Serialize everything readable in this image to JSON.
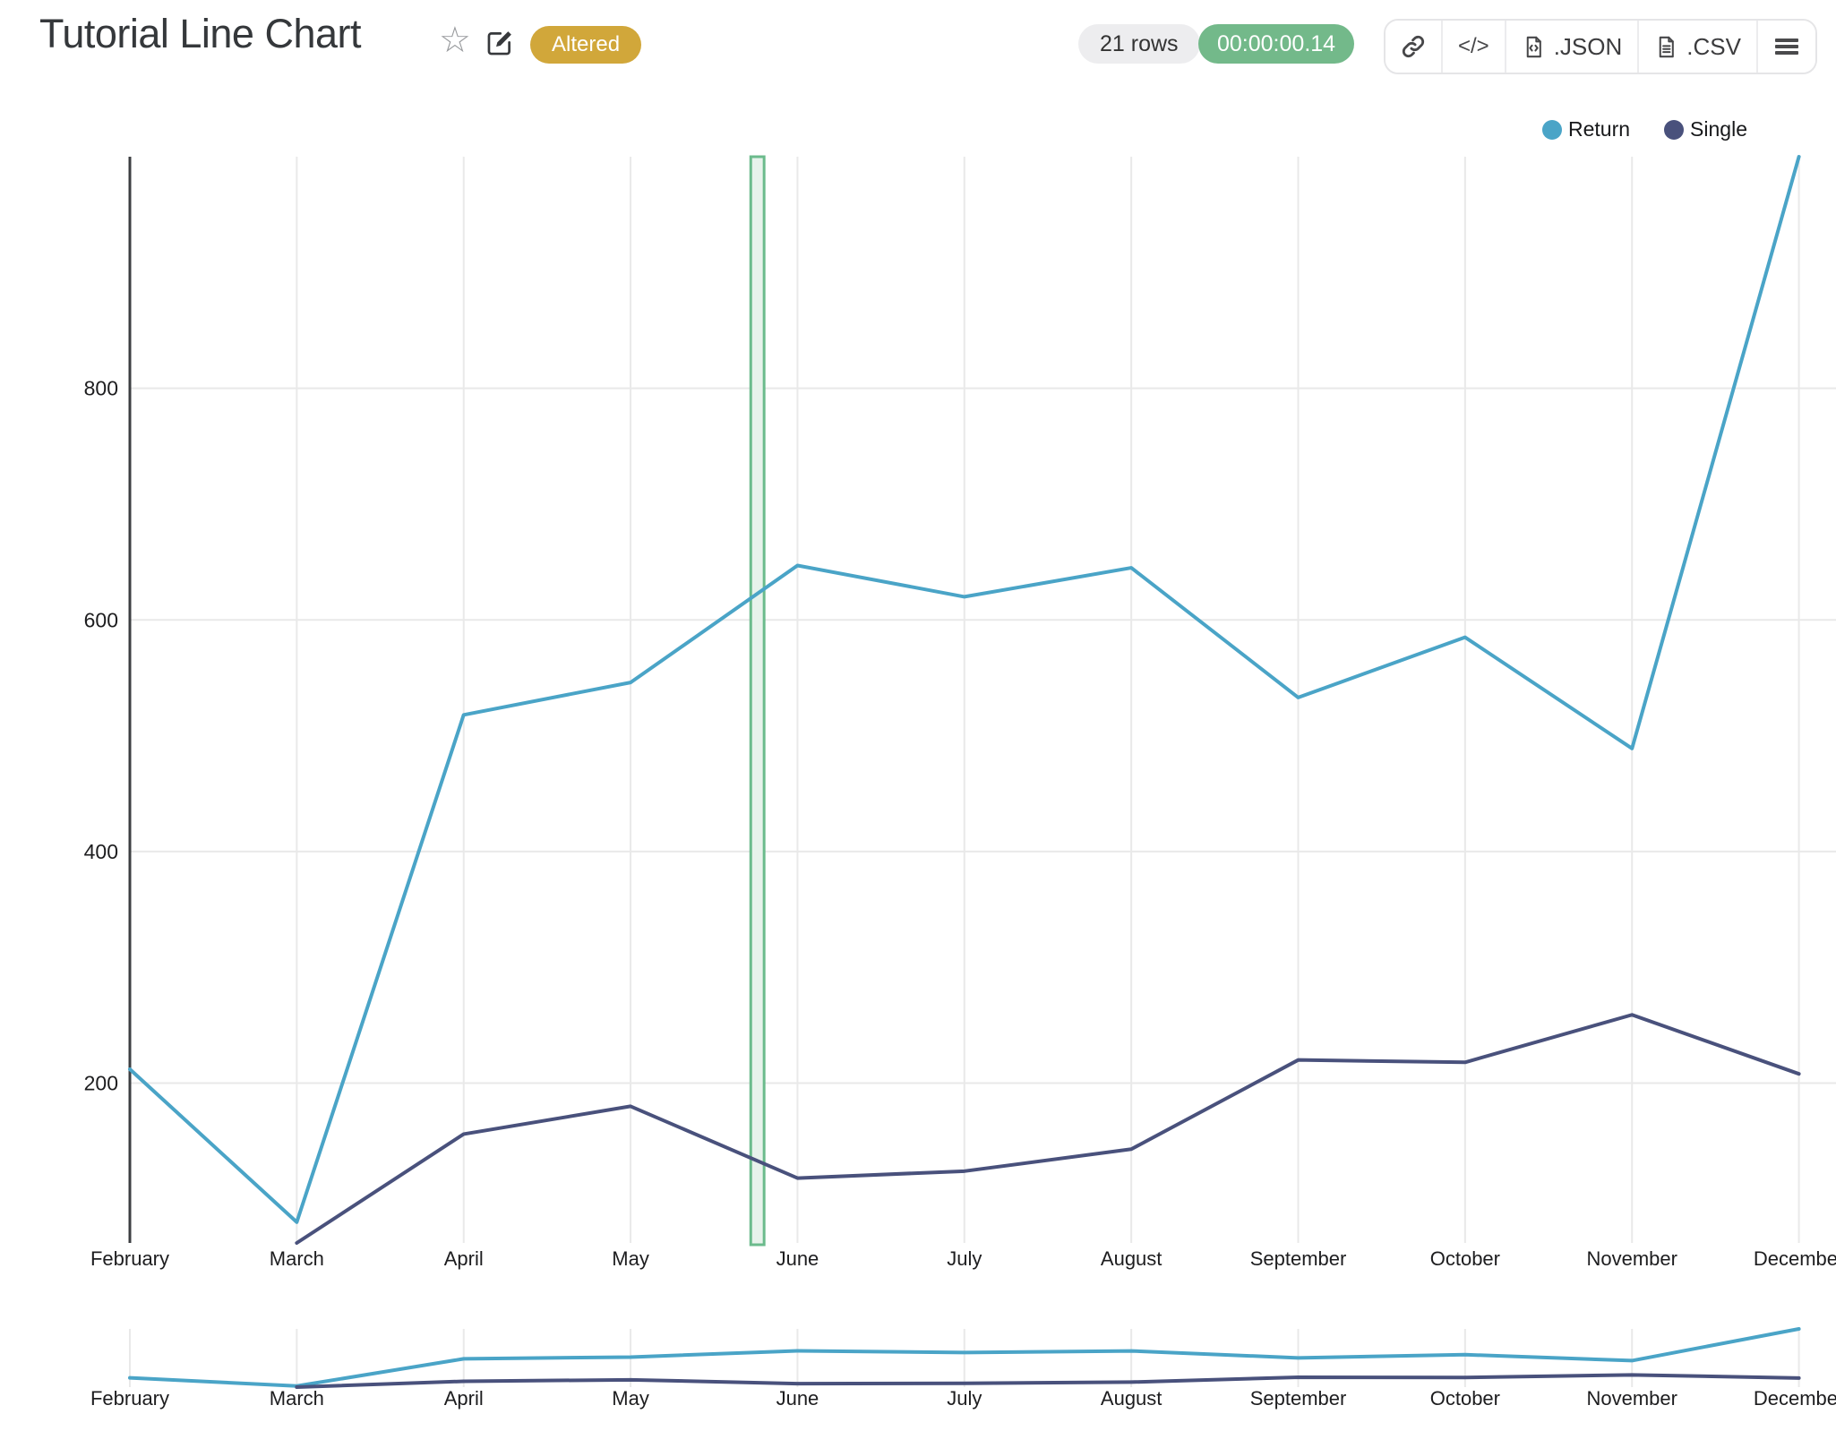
{
  "header": {
    "title": "Tutorial Line Chart",
    "favorite_icon": "star-icon",
    "favorite_glyph": "☆",
    "edit_icon": "edit-icon",
    "status_badge": "Altered",
    "rows_badge": "21 rows",
    "timer_badge": "00:00:00.14",
    "toolbar": {
      "link_icon": "link-icon",
      "code_icon": "code-icon",
      "code_glyph": "</>",
      "json_label": ".JSON",
      "csv_label": ".CSV",
      "menu_icon": "menu-icon"
    }
  },
  "colors": {
    "accent_blue": "#4aa4c7",
    "accent_navy": "#49517c",
    "badge_gold": "#d1a73a",
    "timer_green": "#73b98a",
    "band_fill": "#e7f2eb",
    "band_border": "#6bbb8c",
    "gridline": "#e9e9e9",
    "axis_line": "#3d3f42",
    "label_text": "#1d1d1f"
  },
  "chart_data": {
    "type": "line",
    "title": "Tutorial Line Chart",
    "categories": [
      "February",
      "March",
      "April",
      "May",
      "June",
      "July",
      "August",
      "September",
      "October",
      "November",
      "December"
    ],
    "series": [
      {
        "name": "Return",
        "color": "#4aa4c7",
        "values": [
          212,
          80,
          518,
          546,
          647,
          620,
          645,
          533,
          585,
          489,
          1000
        ]
      },
      {
        "name": "Single",
        "color": "#49517c",
        "values": [
          null,
          62,
          156,
          180,
          118,
          124,
          143,
          220,
          218,
          259,
          208
        ]
      }
    ],
    "yticks": [
      200,
      400,
      600,
      800
    ],
    "ylim": [
      62,
      1000
    ],
    "grid": true,
    "legend_position": "top-right",
    "has_overview_strip": true,
    "highlight_band": {
      "between": [
        "May",
        "June"
      ],
      "start_fraction": 0.72,
      "end_fraction": 0.8,
      "fill": "#e7f2eb",
      "border": "#6bbb8c"
    }
  }
}
